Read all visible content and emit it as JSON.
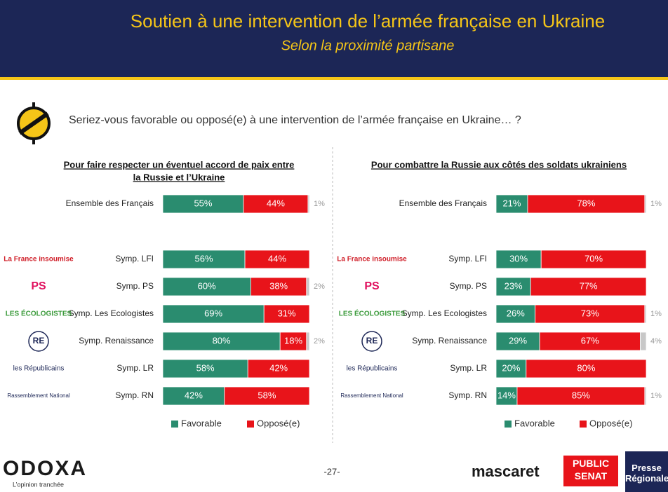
{
  "header": {
    "title": "Soutien à une intervention de l’armée française en Ukraine",
    "subtitle": "Selon la proximité partisane"
  },
  "question": "Seriez-vous favorable ou opposé(e) à une intervention de l’armée française en Ukraine… ?",
  "party_logos": [
    "La France insoumise",
    "PS",
    "LES ÉCOLOGISTES",
    "RE",
    "les Républicains",
    "Rassemblement National"
  ],
  "footer": {
    "brand": "ODOXA",
    "tagline": "L’opinion tranchée",
    "page": "-27-",
    "partners": [
      "mascaret",
      "PUBLIC SENAT",
      "Presse Régionale"
    ]
  },
  "chart_data": [
    {
      "type": "bar",
      "orientation": "horizontal",
      "stacked": true,
      "title": [
        "Pour faire respecter un éventuel accord de paix entre",
        "la Russie et l’Ukraine"
      ],
      "categories": [
        "Ensemble des Français",
        "Symp. LFI",
        "Symp. PS",
        "Symp. Les Ecologistes",
        "Symp. Renaissance",
        "Symp. LR",
        "Symp. RN"
      ],
      "xlim": [
        0,
        100
      ],
      "series": [
        {
          "name": "Favorable",
          "color": "#2a8c6f",
          "values": [
            55,
            56,
            60,
            69,
            80,
            58,
            42
          ],
          "value_labels": [
            "55%",
            "56%",
            "60%",
            "69%",
            "80%",
            "58%",
            "42%"
          ]
        },
        {
          "name": "Opposé(e)",
          "color": "#e8141a",
          "values": [
            44,
            44,
            38,
            31,
            18,
            42,
            58
          ],
          "value_labels": [
            "44%",
            "44%",
            "38%",
            "31%",
            "18%",
            "42%",
            "58%"
          ]
        },
        {
          "color": "#c8c8c8",
          "values": [
            1,
            null,
            2,
            null,
            2,
            null,
            null
          ],
          "value_labels": [
            "1%",
            null,
            "2%",
            null,
            "2%",
            null,
            null
          ]
        }
      ]
    },
    {
      "type": "bar",
      "orientation": "horizontal",
      "stacked": true,
      "title": [
        "Pour combattre la Russie aux côtés des soldats ukrainiens"
      ],
      "categories": [
        "Ensemble des Français",
        "Symp. LFI",
        "Symp. PS",
        "Symp. Les Ecologistes",
        "Symp. Renaissance",
        "Symp. LR",
        "Symp. RN"
      ],
      "xlim": [
        0,
        100
      ],
      "series": [
        {
          "name": "Favorable",
          "color": "#2a8c6f",
          "values": [
            21,
            30,
            23,
            26,
            29,
            20,
            14
          ],
          "value_labels": [
            "21%",
            "30%",
            "23%",
            "26%",
            "29%",
            "20%",
            "14%"
          ]
        },
        {
          "name": "Opposé(e)",
          "color": "#e8141a",
          "values": [
            78,
            70,
            77,
            73,
            67,
            80,
            85
          ],
          "value_labels": [
            "78%",
            "70%",
            "77%",
            "73%",
            "67%",
            "80%",
            "85%"
          ]
        },
        {
          "color": "#c8c8c8",
          "values": [
            1,
            null,
            null,
            1,
            4,
            null,
            1
          ],
          "value_labels": [
            "1%",
            null,
            null,
            "1%",
            "4%",
            null,
            "1%"
          ]
        }
      ]
    }
  ]
}
